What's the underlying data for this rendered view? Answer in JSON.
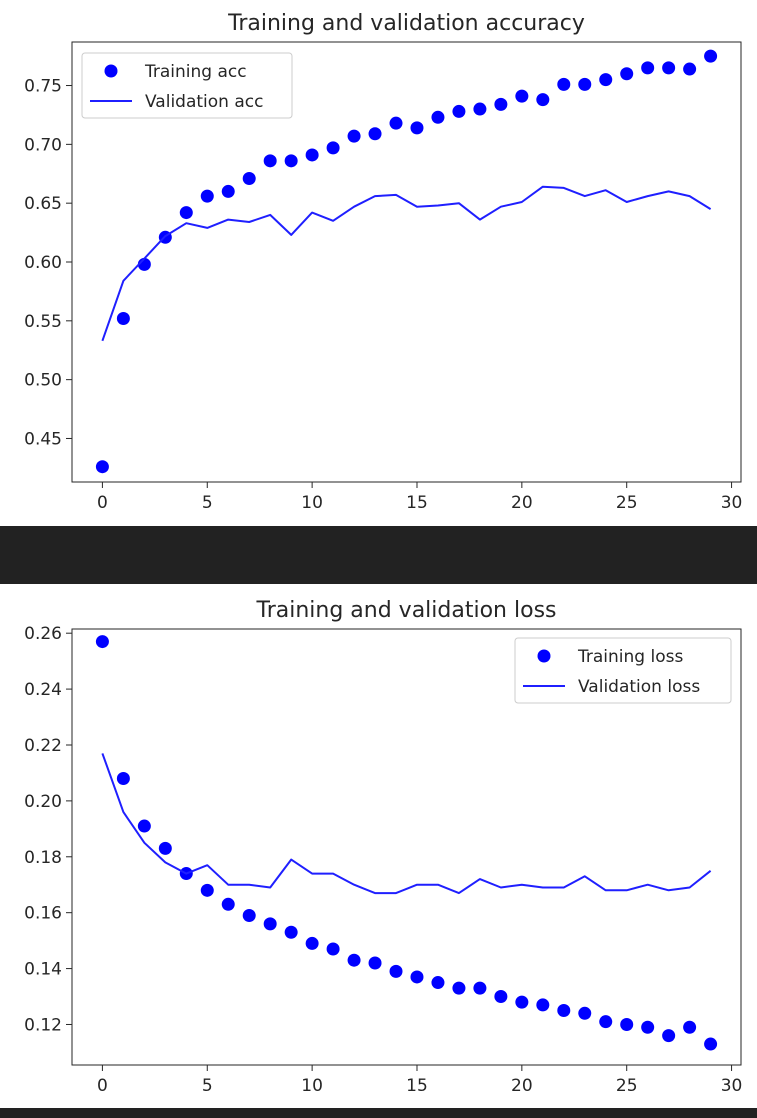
{
  "chart_data": [
    {
      "type": "scatter+line",
      "title": "Training and validation accuracy",
      "xlabel": "",
      "ylabel": "",
      "xlim": [
        -1.45,
        30.45
      ],
      "ylim": [
        0.413,
        0.787
      ],
      "xticks": [
        0,
        5,
        10,
        15,
        20,
        25,
        30
      ],
      "xtick_labels": [
        "0",
        "5",
        "10",
        "15",
        "20",
        "25",
        "30"
      ],
      "yticks": [
        0.45,
        0.5,
        0.55,
        0.6,
        0.65,
        0.7,
        0.75
      ],
      "ytick_labels": [
        "0.45",
        "0.50",
        "0.55",
        "0.60",
        "0.65",
        "0.70",
        "0.75"
      ],
      "grid": false,
      "legend": {
        "position": "upper-left",
        "entries": [
          "Training acc",
          "Validation acc"
        ]
      },
      "series": [
        {
          "name": "Training acc",
          "style": "dots",
          "color": "#0000ff",
          "x": [
            0,
            1,
            2,
            3,
            4,
            5,
            6,
            7,
            8,
            9,
            10,
            11,
            12,
            13,
            14,
            15,
            16,
            17,
            18,
            19,
            20,
            21,
            22,
            23,
            24,
            25,
            26,
            27,
            28,
            29
          ],
          "y": [
            0.426,
            0.552,
            0.598,
            0.621,
            0.642,
            0.656,
            0.66,
            0.671,
            0.686,
            0.686,
            0.691,
            0.697,
            0.707,
            0.709,
            0.718,
            0.714,
            0.723,
            0.728,
            0.73,
            0.734,
            0.741,
            0.738,
            0.751,
            0.751,
            0.755,
            0.76,
            0.765,
            0.765,
            0.764,
            0.775
          ]
        },
        {
          "name": "Validation acc",
          "style": "line",
          "color": "#1f1fff",
          "x": [
            0,
            1,
            2,
            3,
            4,
            5,
            6,
            7,
            8,
            9,
            10,
            11,
            12,
            13,
            14,
            15,
            16,
            17,
            18,
            19,
            20,
            21,
            22,
            23,
            24,
            25,
            26,
            27,
            28,
            29
          ],
          "y": [
            0.533,
            0.584,
            0.603,
            0.622,
            0.633,
            0.629,
            0.636,
            0.634,
            0.64,
            0.623,
            0.642,
            0.635,
            0.647,
            0.656,
            0.657,
            0.647,
            0.648,
            0.65,
            0.636,
            0.647,
            0.651,
            0.664,
            0.663,
            0.656,
            0.661,
            0.651,
            0.656,
            0.66,
            0.656,
            0.645
          ]
        }
      ]
    },
    {
      "type": "scatter+line",
      "title": "Training and validation loss",
      "xlabel": "",
      "ylabel": "",
      "xlim": [
        -1.45,
        30.45
      ],
      "ylim": [
        0.1055,
        0.2615
      ],
      "xticks": [
        0,
        5,
        10,
        15,
        20,
        25,
        30
      ],
      "xtick_labels": [
        "0",
        "5",
        "10",
        "15",
        "20",
        "25",
        "30"
      ],
      "yticks": [
        0.12,
        0.14,
        0.16,
        0.18,
        0.2,
        0.22,
        0.24,
        0.26
      ],
      "ytick_labels": [
        "0.12",
        "0.14",
        "0.16",
        "0.18",
        "0.20",
        "0.22",
        "0.24",
        "0.26"
      ],
      "grid": false,
      "legend": {
        "position": "upper-right",
        "entries": [
          "Training loss",
          "Validation loss"
        ]
      },
      "series": [
        {
          "name": "Training loss",
          "style": "dots",
          "color": "#0000ff",
          "x": [
            0,
            1,
            2,
            3,
            4,
            5,
            6,
            7,
            8,
            9,
            10,
            11,
            12,
            13,
            14,
            15,
            16,
            17,
            18,
            19,
            20,
            21,
            22,
            23,
            24,
            25,
            26,
            27,
            28,
            29
          ],
          "y": [
            0.257,
            0.208,
            0.191,
            0.183,
            0.174,
            0.168,
            0.163,
            0.159,
            0.156,
            0.153,
            0.149,
            0.147,
            0.143,
            0.142,
            0.139,
            0.137,
            0.135,
            0.133,
            0.133,
            0.13,
            0.128,
            0.127,
            0.125,
            0.124,
            0.121,
            0.12,
            0.119,
            0.116,
            0.119,
            0.113
          ]
        },
        {
          "name": "Validation loss",
          "style": "line",
          "color": "#1f1fff",
          "x": [
            0,
            1,
            2,
            3,
            4,
            5,
            6,
            7,
            8,
            9,
            10,
            11,
            12,
            13,
            14,
            15,
            16,
            17,
            18,
            19,
            20,
            21,
            22,
            23,
            24,
            25,
            26,
            27,
            28,
            29
          ],
          "y": [
            0.217,
            0.196,
            0.185,
            0.178,
            0.174,
            0.177,
            0.17,
            0.17,
            0.169,
            0.179,
            0.174,
            0.174,
            0.17,
            0.167,
            0.167,
            0.17,
            0.17,
            0.167,
            0.172,
            0.169,
            0.17,
            0.169,
            0.169,
            0.173,
            0.168,
            0.168,
            0.17,
            0.168,
            0.169,
            0.175
          ]
        }
      ]
    }
  ]
}
